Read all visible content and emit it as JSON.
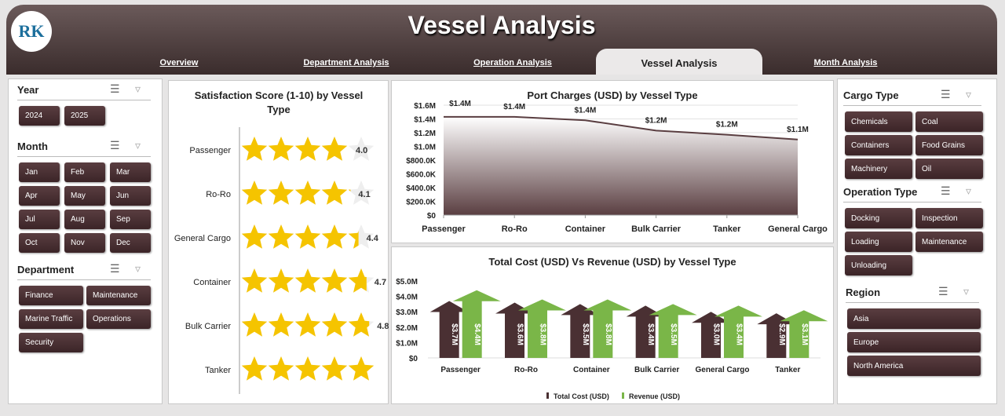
{
  "header": {
    "title": "Vessel Analysis",
    "logo_text": "RK"
  },
  "tabs": [
    {
      "label": "Overview"
    },
    {
      "label": "Department Analysis"
    },
    {
      "label": "Operation Analysis"
    },
    {
      "label": "Vessel Analysis",
      "active": true
    },
    {
      "label": "Month Analysis"
    }
  ],
  "left": {
    "year": {
      "title": "Year",
      "items": [
        "2024",
        "2025"
      ]
    },
    "month": {
      "title": "Month",
      "items": [
        "Jan",
        "Feb",
        "Mar",
        "Apr",
        "May",
        "Jun",
        "Jul",
        "Aug",
        "Sep",
        "Oct",
        "Nov",
        "Dec"
      ]
    },
    "department": {
      "title": "Department",
      "items": [
        "Finance",
        "Maintenance",
        "Marine Traffic",
        "Operations",
        "Security"
      ]
    }
  },
  "right": {
    "cargo": {
      "title": "Cargo Type",
      "items": [
        "Chemicals",
        "Coal",
        "Containers",
        "Food Grains",
        "Machinery",
        "Oil"
      ]
    },
    "operation": {
      "title": "Operation Type",
      "items": [
        "Docking",
        "Inspection",
        "Loading",
        "Maintenance",
        "Unloading"
      ]
    },
    "region": {
      "title": "Region",
      "items": [
        "Asia",
        "Europe",
        "North America"
      ]
    }
  },
  "icons": {
    "multiselect": "multi-select-icon",
    "clear": "clear-filter-icon"
  },
  "colors": {
    "brown": "#4a3033",
    "green": "#7ab648",
    "star": "#f5c400"
  },
  "chart_data": [
    {
      "type": "rating",
      "title": "Satisfaction Score (1-10) by Vessel Type",
      "categories": [
        "Passenger",
        "Ro-Ro",
        "General Cargo",
        "Container",
        "Bulk Carrier",
        "Tanker"
      ],
      "values": [
        4.0,
        4.1,
        4.4,
        4.7,
        4.8,
        5.0
      ],
      "labels": [
        "4.0",
        "4.1",
        "4.4",
        "4.7",
        "4.8",
        ""
      ],
      "max": 5
    },
    {
      "type": "area",
      "title": "Port Charges (USD) by Vessel Type",
      "categories": [
        "Passenger",
        "Ro-Ro",
        "Container",
        "Bulk Carrier",
        "Tanker",
        "General Cargo"
      ],
      "values": [
        1430000,
        1430000,
        1380000,
        1230000,
        1170000,
        1100000
      ],
      "labels": [
        "$1.4M",
        "$1.4M",
        "$1.4M",
        "$1.2M",
        "$1.2M",
        "$1.1M"
      ],
      "ylim": [
        0,
        1600000
      ],
      "yticks": [
        "$0",
        "$200.0K",
        "$400.0K",
        "$600.0K",
        "$800.0K",
        "$1.0M",
        "$1.2M",
        "$1.4M",
        "$1.6M"
      ],
      "grid": true
    },
    {
      "type": "bar",
      "title": "Total Cost (USD) Vs Revenue (USD) by Vessel Type",
      "categories": [
        "Passenger",
        "Ro-Ro",
        "Container",
        "Bulk Carrier",
        "General Cargo",
        "Tanker"
      ],
      "series": [
        {
          "name": "Total Cost (USD)",
          "values": [
            3.7,
            3.6,
            3.5,
            3.4,
            3.0,
            2.9
          ],
          "labels": [
            "$3.7M",
            "$3.6M",
            "$3.5M",
            "$3.4M",
            "$3.0M",
            "$2.9M"
          ]
        },
        {
          "name": "Revenue (USD)",
          "values": [
            4.4,
            3.8,
            3.8,
            3.5,
            3.4,
            3.1
          ],
          "labels": [
            "$4.4M",
            "$3.8M",
            "$3.8M",
            "$3.5M",
            "$3.4M",
            "$3.1M"
          ]
        }
      ],
      "ylim": [
        0,
        5
      ],
      "yticks": [
        "$0",
        "$1.0M",
        "$2.0M",
        "$3.0M",
        "$4.0M",
        "$5.0M"
      ],
      "legend": "bottom"
    }
  ]
}
